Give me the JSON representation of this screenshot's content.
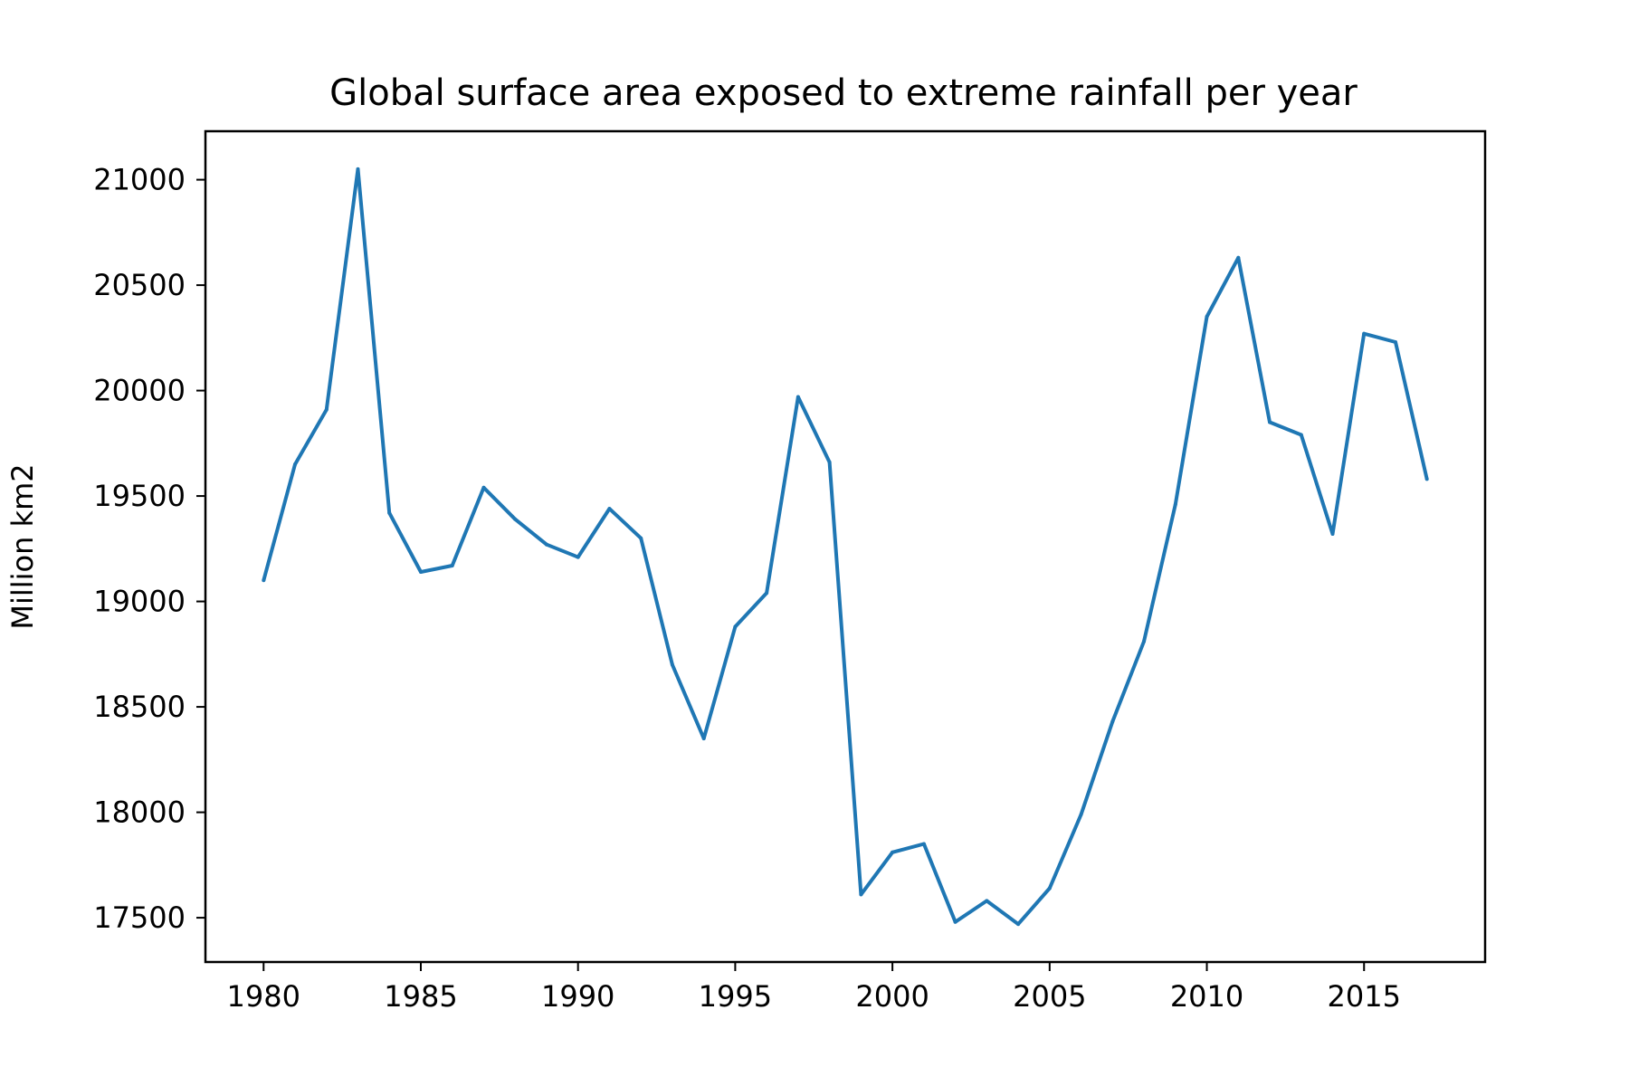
{
  "chart_data": {
    "type": "line",
    "title": "Global surface area exposed to extreme rainfall per year",
    "xlabel": "",
    "ylabel": "Million km2",
    "x": [
      1980,
      1981,
      1982,
      1983,
      1984,
      1985,
      1986,
      1987,
      1988,
      1989,
      1990,
      1991,
      1992,
      1993,
      1994,
      1995,
      1996,
      1997,
      1998,
      1999,
      2000,
      2001,
      2002,
      2003,
      2004,
      2005,
      2006,
      2007,
      2008,
      2009,
      2010,
      2011,
      2012,
      2013,
      2014,
      2015,
      2016,
      2017
    ],
    "series": [
      {
        "values": [
          19100,
          19650,
          19910,
          21050,
          19420,
          19140,
          19170,
          19540,
          19390,
          19270,
          19210,
          19440,
          19300,
          18700,
          18350,
          18880,
          19040,
          19970,
          19660,
          17610,
          17810,
          17850,
          17480,
          17580,
          17470,
          17640,
          17990,
          18430,
          18810,
          19460,
          20350,
          20630,
          19850,
          19790,
          19320,
          20270,
          20230,
          19580
        ],
        "color": "#1f77b4"
      }
    ],
    "xlim": [
      1978.15,
      1018.85
    ],
    "ylim": [
      17290,
      21230
    ],
    "xticks": [
      "1980",
      "1985",
      "1990",
      "1995",
      "2000",
      "2005",
      "2010",
      "2015"
    ],
    "yticks": [
      "17500",
      "18000",
      "18500",
      "19000",
      "19500",
      "20000",
      "20500",
      "21000"
    ],
    "grid": false,
    "legend": "none"
  }
}
